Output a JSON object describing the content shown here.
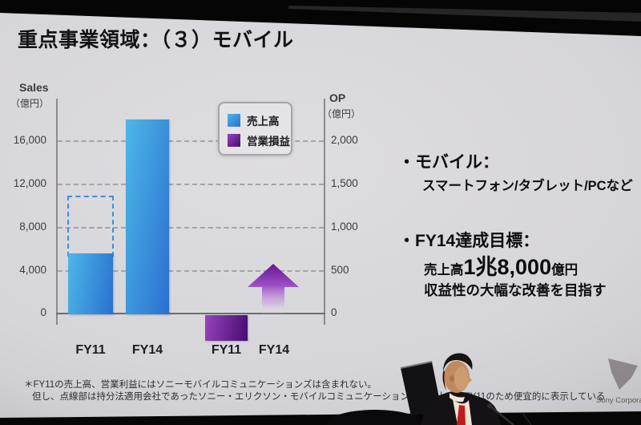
{
  "slide": {
    "title": "重点事業領域：（３）モバイル",
    "watermark": "Sony Corporat",
    "footnote_line1": "＊FY11の売上高、営業利益にはソニーモバイルコミュニケーションズは含まれない。",
    "footnote_line2a": "但し、点線部は持分法適用会社であったソニー・エリクソン・モバイルコミュニケーションズの売上高をFY11",
    "footnote_line2b": "のため便宜的に表示している"
  },
  "bullets": {
    "mobile_label": "・モバイル：",
    "mobile_sub": "スマートフォン/タブレット/PCなど",
    "goal_label": "・FY14達成目標：",
    "goal_sales_prefix": "売上高",
    "goal_sales_value": "1兆8,000",
    "goal_sales_unit": "億円",
    "goal_profit_line": "収益性の大幅な改善を目指す"
  },
  "colors": {
    "sales_light": "#4db7e8",
    "sales_dark": "#2a70d0",
    "op_light": "#9643bc",
    "op_dark": "#470c72",
    "arrow_top": "#6a1492",
    "arrow_mid": "#9c4fc4"
  },
  "chart_data": {
    "type": "bar",
    "title": "",
    "categories": [
      "FY11",
      "FY14"
    ],
    "left_axis": {
      "label": "Sales",
      "unit": "（億円）",
      "ticks": [
        "16,000",
        "12,000",
        "8,000",
        "4,000",
        "0"
      ],
      "range": [
        0,
        18700
      ]
    },
    "right_axis": {
      "label": "OP",
      "unit": "（億円）",
      "ticks": [
        "2,000",
        "1,500",
        "1,000",
        "500",
        "0"
      ],
      "range": [
        -350,
        2340
      ]
    },
    "gridlines": "dashed horizontal at each labeled tick",
    "legend_position": "top-center",
    "series": [
      {
        "name": "売上高",
        "axis": "left",
        "values": [
          5600,
          18000
        ],
        "fy11_dashed_total": 11000
      },
      {
        "name": "営業損益",
        "axis": "right",
        "values": [
          -300,
          null
        ],
        "fy14_arrow_tip": 580,
        "fy14_marker": "upward fading arrow (improvement target)"
      }
    ]
  }
}
